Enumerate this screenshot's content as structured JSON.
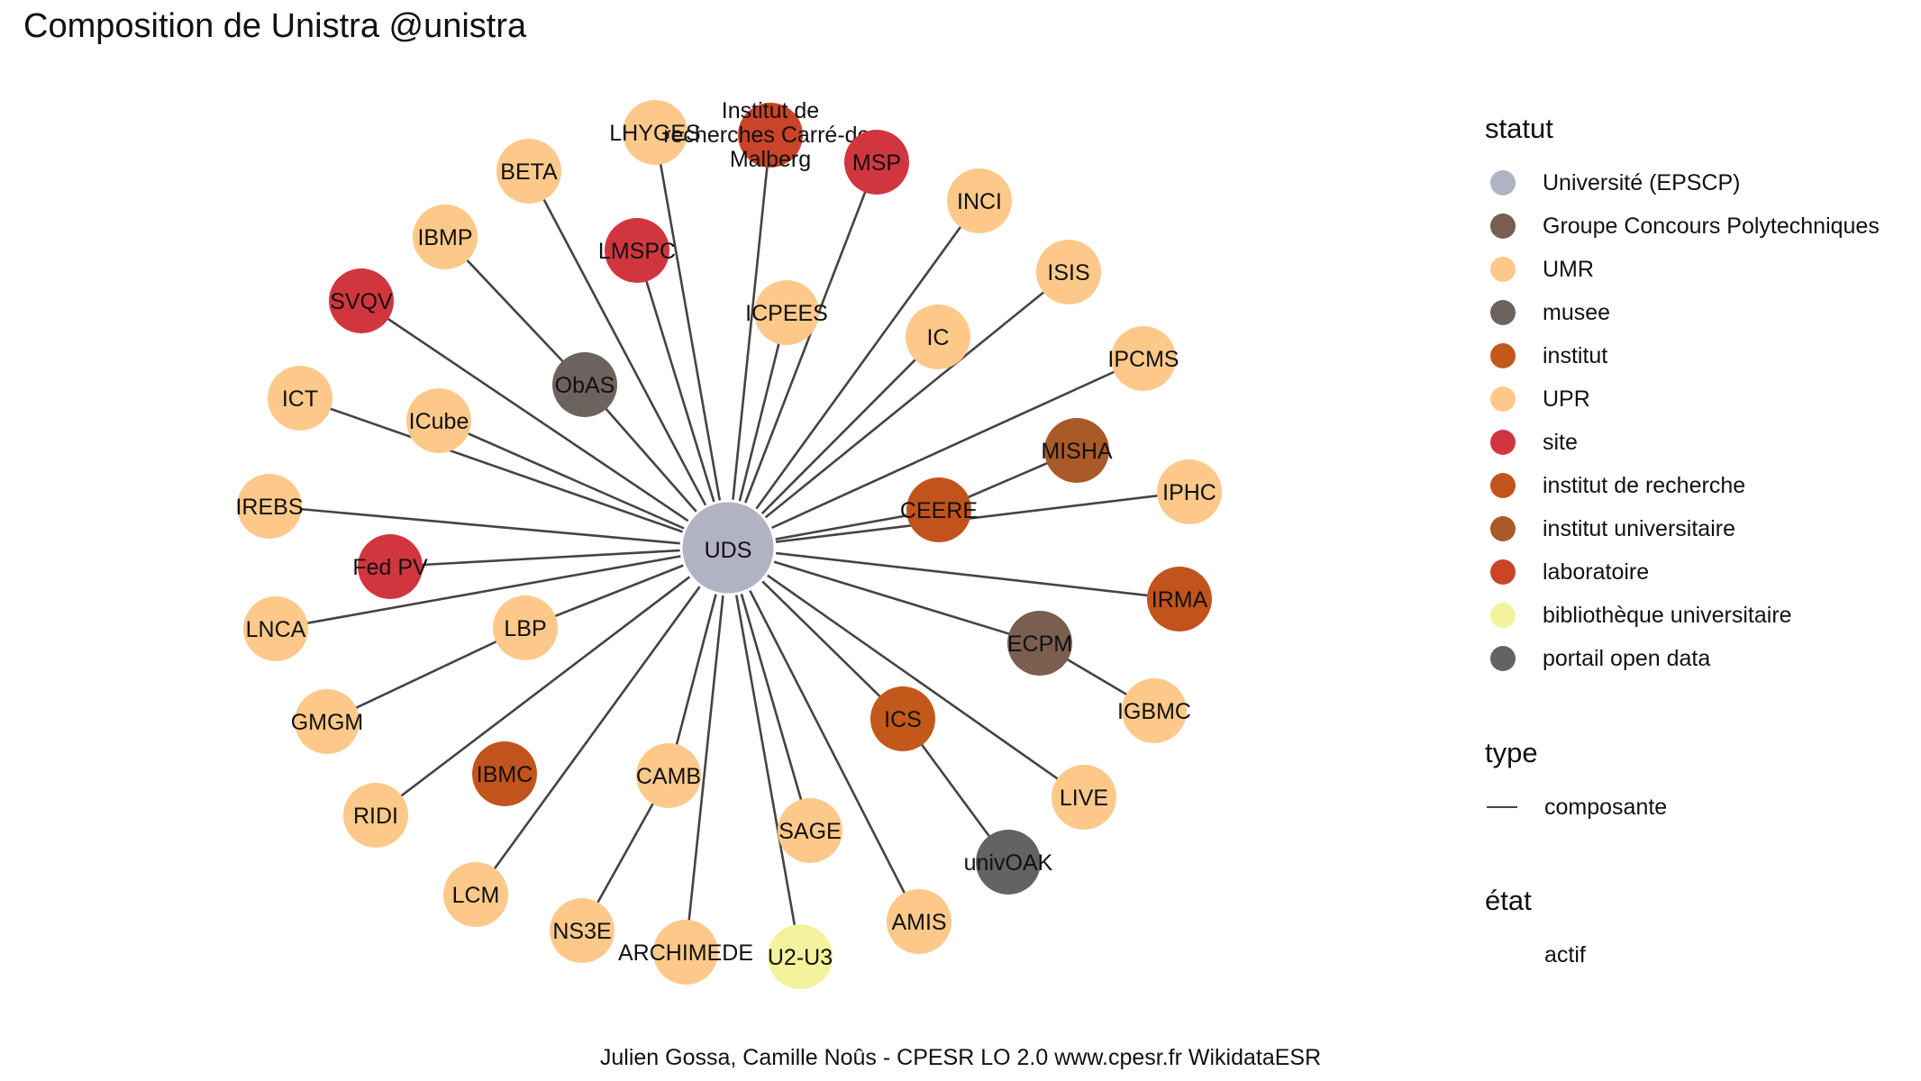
{
  "title": "Composition de Unistra @unistra",
  "caption": "Julien Gossa, Camille Noûs - CPESR LO 2.0 www.cpesr.fr WikidataESR",
  "colors": {
    "Université (EPSCP)": "#b1b3c4",
    "Groupe Concours Polytechniques": "#7a5e50",
    "UMR": "#fdc98a",
    "musee": "#6d635e",
    "institut": "#c2591a",
    "UPR": "#fdc98a",
    "site": "#d1363f",
    "institut de recherche": "#c3531d",
    "institut universitaire": "#a95a28",
    "laboratoire": "#c94428",
    "bibliothèque universitaire": "#f4f29c",
    "portail open data": "#636363",
    "edge": "#444444"
  },
  "legend": {
    "statut_title": "statut",
    "statut": [
      "Université (EPSCP)",
      "Groupe Concours Polytechniques",
      "UMR",
      "musee",
      "institut",
      "UPR",
      "site",
      "institut de recherche",
      "institut universitaire",
      "laboratoire",
      "bibliothèque universitaire",
      "portail open data"
    ],
    "type_title": "type",
    "type": [
      "composante"
    ],
    "etat_title": "état",
    "etat": [
      "actif"
    ]
  },
  "graph": {
    "nodes": [
      {
        "label": "UDS",
        "statut": "Université (EPSCP)"
      },
      {
        "label": "LHYGES",
        "statut": "UMR"
      },
      {
        "label": "Institut de recherches Carré-de-Malberg",
        "statut": "laboratoire"
      },
      {
        "label": "MSP",
        "statut": "site"
      },
      {
        "label": "INCI",
        "statut": "UPR"
      },
      {
        "label": "BETA",
        "statut": "UMR"
      },
      {
        "label": "IBMP",
        "statut": "UPR"
      },
      {
        "label": "LMSPC",
        "statut": "site"
      },
      {
        "label": "ISIS",
        "statut": "UMR"
      },
      {
        "label": "ICPEES",
        "statut": "UMR"
      },
      {
        "label": "IC",
        "statut": "UMR"
      },
      {
        "label": "SVQV",
        "statut": "site"
      },
      {
        "label": "IPCMS",
        "statut": "UMR"
      },
      {
        "label": "ObAS",
        "statut": "musee"
      },
      {
        "label": "ICT",
        "statut": "UMR"
      },
      {
        "label": "ICube",
        "statut": "UMR"
      },
      {
        "label": "MISHA",
        "statut": "institut universitaire"
      },
      {
        "label": "IPHC",
        "statut": "UMR"
      },
      {
        "label": "IREBS",
        "statut": "UMR"
      },
      {
        "label": "CEERE",
        "statut": "institut de recherche"
      },
      {
        "label": "Fed PV",
        "statut": "site"
      },
      {
        "label": "IRMA",
        "statut": "institut de recherche"
      },
      {
        "label": "LNCA",
        "statut": "UMR"
      },
      {
        "label": "LBP",
        "statut": "UMR"
      },
      {
        "label": "ECPM",
        "statut": "Groupe Concours Polytechniques"
      },
      {
        "label": "IGBMC",
        "statut": "UMR"
      },
      {
        "label": "GMGM",
        "statut": "UMR"
      },
      {
        "label": "ICS",
        "statut": "institut"
      },
      {
        "label": "IBMC",
        "statut": "institut de recherche"
      },
      {
        "label": "CAMB",
        "statut": "UMR"
      },
      {
        "label": "RIDI",
        "statut": "UMR"
      },
      {
        "label": "LIVE",
        "statut": "UMR"
      },
      {
        "label": "SAGE",
        "statut": "UMR"
      },
      {
        "label": "univOAK",
        "statut": "portail open data"
      },
      {
        "label": "LCM",
        "statut": "UMR"
      },
      {
        "label": "AMIS",
        "statut": "UMR"
      },
      {
        "label": "NS3E",
        "statut": "UMR"
      },
      {
        "label": "ARCHIMEDE",
        "statut": "UMR"
      },
      {
        "label": "U2-U3",
        "statut": "bibliothèque universitaire"
      }
    ],
    "edges": [
      [
        "UDS",
        "LHYGES"
      ],
      [
        "UDS",
        "Institut de recherches Carré-de-Malberg"
      ],
      [
        "UDS",
        "MSP"
      ],
      [
        "UDS",
        "INCI"
      ],
      [
        "UDS",
        "BETA"
      ],
      [
        "UDS",
        "ObAS"
      ],
      [
        "ObAS",
        "IBMP"
      ],
      [
        "UDS",
        "LMSPC"
      ],
      [
        "UDS",
        "ISIS"
      ],
      [
        "UDS",
        "ICPEES"
      ],
      [
        "UDS",
        "IC"
      ],
      [
        "UDS",
        "SVQV"
      ],
      [
        "UDS",
        "IPCMS"
      ],
      [
        "UDS",
        "ICT"
      ],
      [
        "UDS",
        "ICube"
      ],
      [
        "UDS",
        "CEERE"
      ],
      [
        "CEERE",
        "MISHA"
      ],
      [
        "UDS",
        "IPHC"
      ],
      [
        "UDS",
        "IREBS"
      ],
      [
        "UDS",
        "Fed PV"
      ],
      [
        "UDS",
        "IRMA"
      ],
      [
        "UDS",
        "LNCA"
      ],
      [
        "UDS",
        "LBP"
      ],
      [
        "LBP",
        "GMGM"
      ],
      [
        "UDS",
        "ECPM"
      ],
      [
        "ECPM",
        "IGBMC"
      ],
      [
        "UDS",
        "ICS"
      ],
      [
        "ICS",
        "univOAK"
      ],
      [
        "UDS",
        "RIDI"
      ],
      [
        "UDS",
        "CAMB"
      ],
      [
        "CAMB",
        "NS3E"
      ],
      [
        "UDS",
        "LIVE"
      ],
      [
        "UDS",
        "SAGE"
      ],
      [
        "UDS",
        "LCM"
      ],
      [
        "UDS",
        "AMIS"
      ],
      [
        "UDS",
        "ARCHIMEDE"
      ],
      [
        "UDS",
        "U2-U3"
      ]
    ]
  }
}
